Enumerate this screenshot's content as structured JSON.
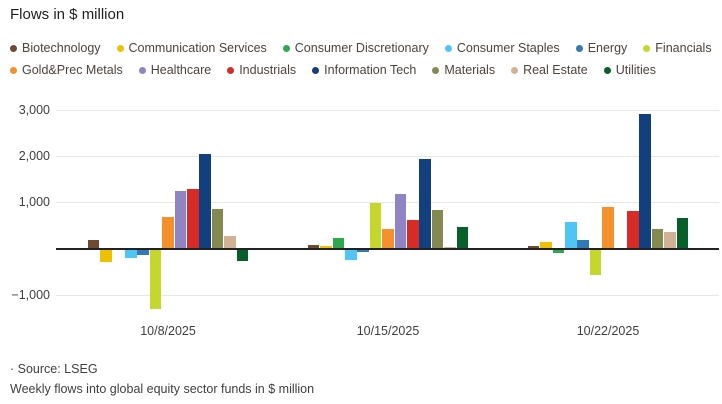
{
  "title": "Flows in $ million",
  "chart_data": {
    "type": "bar",
    "title": "Flows in $ million",
    "categories": [
      "10/8/2025",
      "10/15/2025",
      "10/22/2025"
    ],
    "series": [
      {
        "name": "Biotechnology",
        "color": "#6F4A2F",
        "values": [
          175,
          80,
          60
        ]
      },
      {
        "name": "Communication Services",
        "color": "#EFC103",
        "values": [
          -280,
          60,
          145
        ]
      },
      {
        "name": "Consumer Discretionary",
        "color": "#2EA84C",
        "values": [
          0,
          225,
          -65
        ]
      },
      {
        "name": "Consumer Staples",
        "color": "#4FC5F6",
        "values": [
          -175,
          -230,
          580
        ]
      },
      {
        "name": "Energy",
        "color": "#3279B7",
        "values": [
          -125,
          -60,
          175
        ]
      },
      {
        "name": "Financials",
        "color": "#C5D62D",
        "values": [
          -1290,
          990,
          -555
        ]
      },
      {
        "name": "Gold&Prec Metals",
        "color": "#F5912C",
        "values": [
          675,
          420,
          890
        ]
      },
      {
        "name": "Healthcare",
        "color": "#9184C4",
        "values": [
          1250,
          1175,
          0
        ]
      },
      {
        "name": "Industrials",
        "color": "#D92B25",
        "values": [
          1275,
          610,
          810
        ]
      },
      {
        "name": "Information Tech",
        "color": "#123F7E",
        "values": [
          2040,
          1940,
          2900
        ]
      },
      {
        "name": "Materials",
        "color": "#848A4F",
        "values": [
          860,
          825,
          430
        ]
      },
      {
        "name": "Real Estate",
        "color": "#D2B296",
        "values": [
          275,
          40,
          355
        ]
      },
      {
        "name": "Utilities",
        "color": "#095F2B",
        "values": [
          -250,
          455,
          665
        ]
      }
    ],
    "y_ticks": [
      3000,
      2000,
      1000,
      -1000
    ],
    "y_tick_labels": [
      "3,000",
      "2,000",
      "1,000",
      "−1,000"
    ],
    "ylim": [
      -1500,
      3100
    ],
    "grid": true,
    "legend_position": "top",
    "legend_row_break_after": 6
  },
  "footer": {
    "source": "· Source: LSEG",
    "caption": "Weekly flows into global equity sector funds in $ million"
  }
}
